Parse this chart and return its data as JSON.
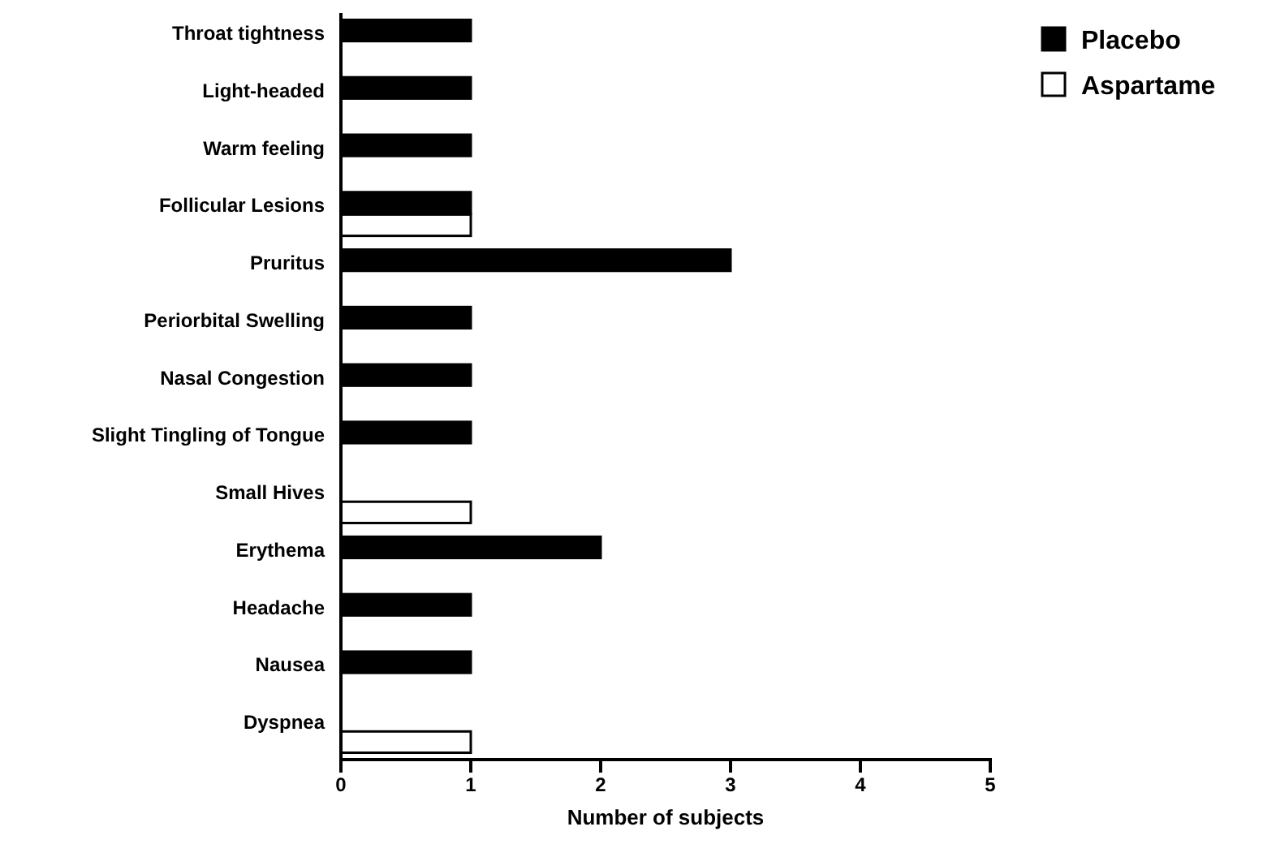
{
  "chart_data": {
    "type": "bar",
    "orientation": "horizontal",
    "xlabel": "Number of subjects",
    "categories": [
      "Throat tightness",
      "Light-headed",
      "Warm feeling",
      "Follicular Lesions",
      "Pruritus",
      "Periorbital Swelling",
      "Nasal Congestion",
      "Slight Tingling of Tongue",
      "Small Hives",
      "Erythema",
      "Headache",
      "Nausea",
      "Dyspnea"
    ],
    "series": [
      {
        "name": "Placebo",
        "color": "#000000",
        "values": [
          1,
          1,
          1,
          1,
          3,
          1,
          1,
          1,
          0,
          2,
          1,
          1,
          0
        ]
      },
      {
        "name": "Aspartame",
        "color": "#ffffff",
        "values": [
          0,
          0,
          0,
          1,
          0,
          0,
          0,
          0,
          1,
          0,
          0,
          0,
          1
        ]
      }
    ],
    "xlim": [
      0,
      5
    ],
    "xticks": [
      0,
      1,
      2,
      3,
      4,
      5
    ],
    "grid": false,
    "legend": "top right"
  }
}
